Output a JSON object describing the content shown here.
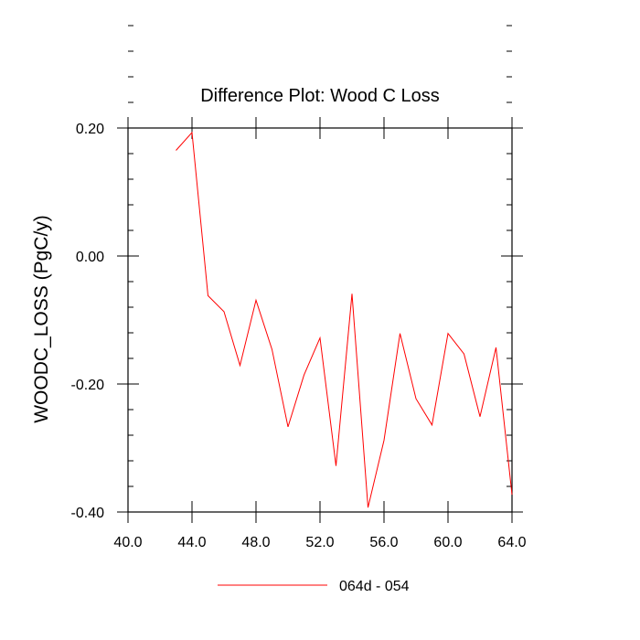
{
  "chart_data": {
    "type": "line",
    "title": "Difference Plot: Wood C Loss",
    "xlabel": "",
    "ylabel": "WOODC_LOSS  (PgC/y)",
    "xlim": [
      40,
      64
    ],
    "ylim": [
      -0.4,
      0.2
    ],
    "xticks": [
      40,
      44,
      48,
      52,
      56,
      60,
      64
    ],
    "xtick_labels": [
      "40.0",
      "44.0",
      "48.0",
      "52.0",
      "56.0",
      "60.0",
      "64.0"
    ],
    "yticks": [
      0.2,
      0.0,
      -0.2,
      -0.4
    ],
    "ytick_labels": [
      "0.20",
      "0.00",
      "-0.20",
      "-0.40"
    ],
    "grid": false,
    "legend_position": "bottom",
    "series": [
      {
        "name": "064d - 054",
        "color": "#ff0000",
        "x": [
          43,
          44,
          45,
          46,
          47,
          48,
          49,
          50,
          51,
          52,
          53,
          54,
          55,
          56,
          57,
          58,
          59,
          60,
          61,
          62,
          63,
          64
        ],
        "y": [
          0.165,
          0.193,
          -0.062,
          -0.087,
          -0.171,
          -0.069,
          -0.146,
          -0.267,
          -0.186,
          -0.128,
          -0.328,
          -0.059,
          -0.393,
          -0.288,
          -0.121,
          -0.223,
          -0.264,
          -0.121,
          -0.153,
          -0.251,
          -0.143,
          -0.373
        ]
      }
    ]
  }
}
